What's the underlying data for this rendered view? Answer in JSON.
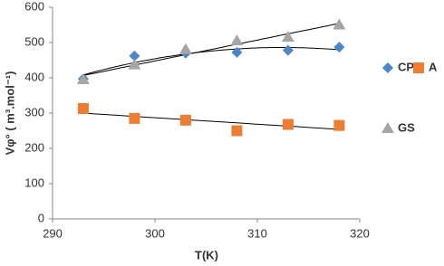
{
  "chart_data": {
    "type": "scatter",
    "x_label": "T(K)",
    "y_label": "Vφ° ( m³.mol⁻¹)",
    "x": [
      293,
      298,
      303,
      308,
      313,
      318
    ],
    "series": [
      {
        "name": "CP",
        "color": "#4a86c8",
        "marker": "diamond",
        "trendline": "poly2",
        "values": [
          397,
          462,
          470,
          472,
          478,
          487
        ]
      },
      {
        "name": "A",
        "color": "#ed7d31",
        "marker": "square",
        "trendline": "linear",
        "values": [
          313,
          285,
          280,
          250,
          268,
          265
        ]
      },
      {
        "name": "GS",
        "color": "#a5a5a5",
        "marker": "triangle",
        "trendline": "linear",
        "values": [
          395,
          437,
          480,
          505,
          515,
          550
        ]
      }
    ],
    "xlim": [
      290,
      320
    ],
    "xticks": [
      290,
      300,
      310,
      320
    ],
    "ylim": [
      0,
      600
    ],
    "yticks": [
      0,
      100,
      200,
      300,
      400,
      500,
      600
    ]
  }
}
